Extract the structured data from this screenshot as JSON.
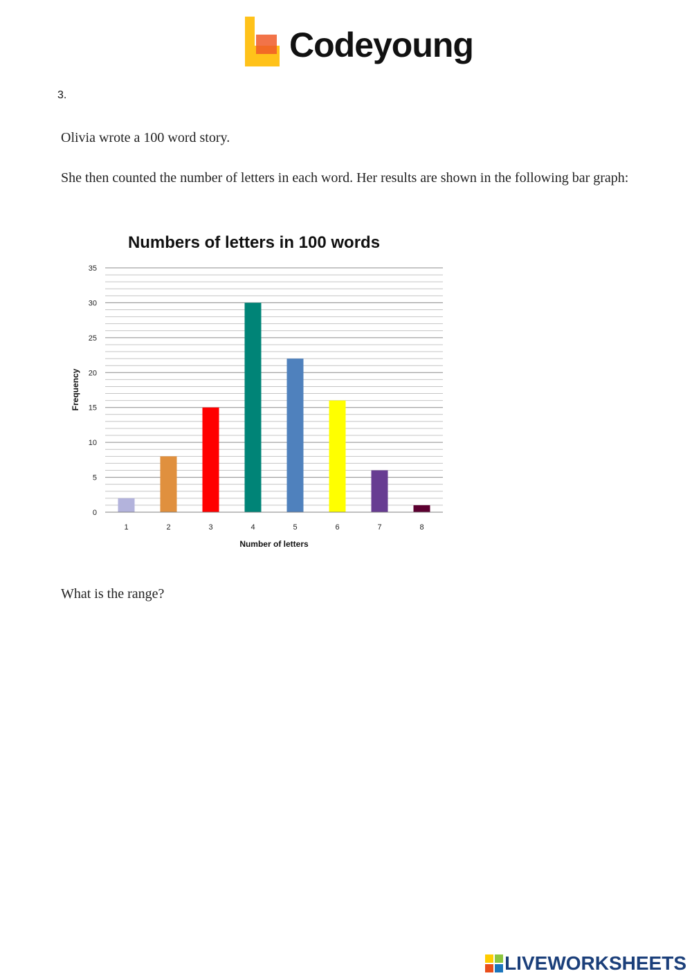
{
  "header": {
    "brand_name": "Codeyoung",
    "brand_colors": {
      "primary": "#ffc21a",
      "accent": "#f05a28"
    }
  },
  "question": {
    "number": "3.",
    "line1": "Olivia wrote a 100 word story.",
    "line2": "She then counted the number of letters in each word. Her results are shown in the following bar graph:",
    "prompt": "What is the range?"
  },
  "chart_data": {
    "type": "bar",
    "title": "Numbers of letters in 100 words",
    "xlabel": "Number of letters",
    "ylabel": "Frequency",
    "categories": [
      "1",
      "2",
      "3",
      "4",
      "5",
      "6",
      "7",
      "8"
    ],
    "values": [
      2,
      8,
      15,
      30,
      22,
      16,
      6,
      1
    ],
    "colors": [
      "#b3b3dc",
      "#e0903e",
      "#ff0000",
      "#008477",
      "#4f81bd",
      "#ffff00",
      "#673c92",
      "#5c0030"
    ],
    "ylim": [
      0,
      35
    ],
    "yticks": [
      0,
      5,
      10,
      15,
      20,
      25,
      30,
      35
    ],
    "grid": true,
    "legend": "none"
  },
  "footer": {
    "brand": "LIVEWORKSHEETS",
    "icon_colors": [
      "#ffcc00",
      "#8cc63f",
      "#e94e1b",
      "#1b75bc"
    ]
  }
}
